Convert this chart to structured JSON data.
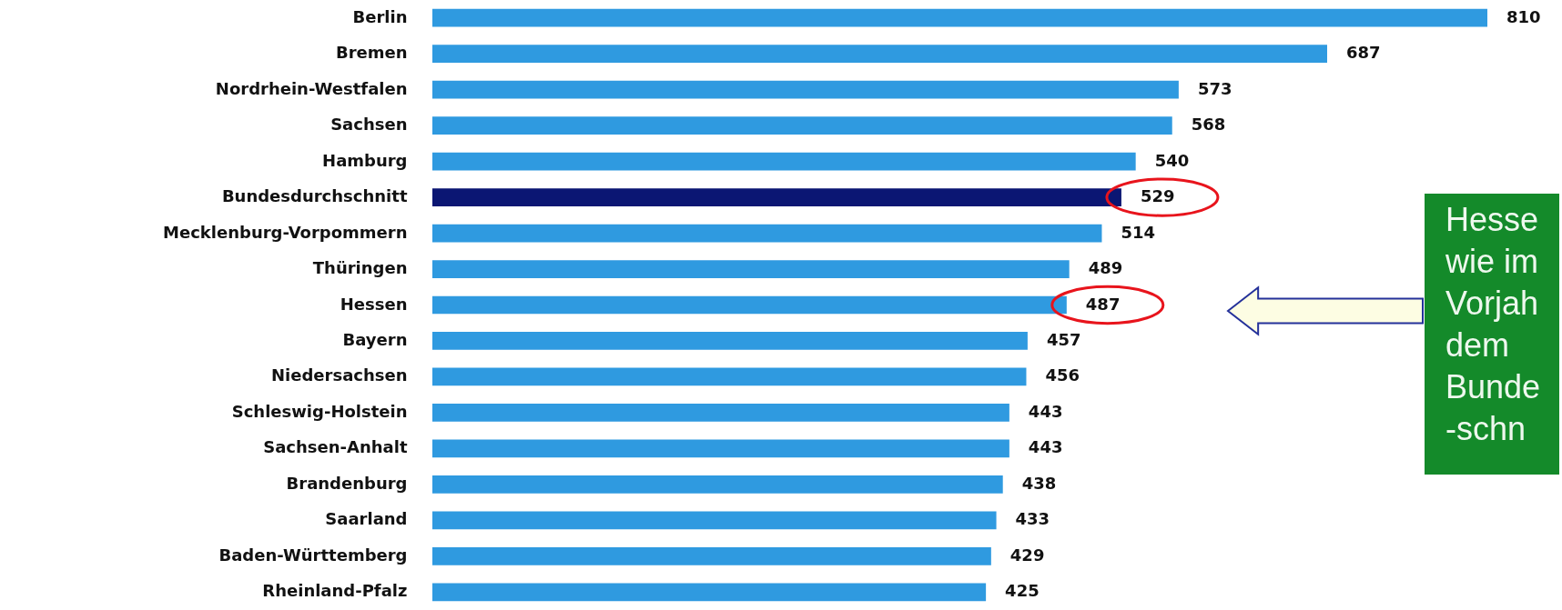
{
  "chart_data": {
    "type": "bar",
    "orientation": "horizontal",
    "categories": [
      "Berlin",
      "Bremen",
      "Nordrhein-Westfalen",
      "Sachsen",
      "Hamburg",
      "Bundesdurchschnitt",
      "Mecklenburg-Vorpommern",
      "Thüringen",
      "Hessen",
      "Bayern",
      "Niedersachsen",
      "Schleswig-Holstein",
      "Sachsen-Anhalt",
      "Brandenburg",
      "Saarland",
      "Baden-Württemberg",
      "Rheinland-Pfalz"
    ],
    "values": [
      810,
      687,
      573,
      568,
      540,
      529,
      514,
      489,
      487,
      457,
      456,
      443,
      443,
      438,
      433,
      429,
      425
    ],
    "colors": [
      "#2f9ae0",
      "#2f9ae0",
      "#2f9ae0",
      "#2f9ae0",
      "#2f9ae0",
      "#0b1673",
      "#2f9ae0",
      "#2f9ae0",
      "#2f9ae0",
      "#2f9ae0",
      "#2f9ae0",
      "#2f9ae0",
      "#2f9ae0",
      "#2f9ae0",
      "#2f9ae0",
      "#2f9ae0",
      "#2f9ae0"
    ],
    "data_labels": true,
    "annotations": [
      "Hesse\nwie im\nVorjah\ndem\nBunde\n-schn"
    ]
  }
}
